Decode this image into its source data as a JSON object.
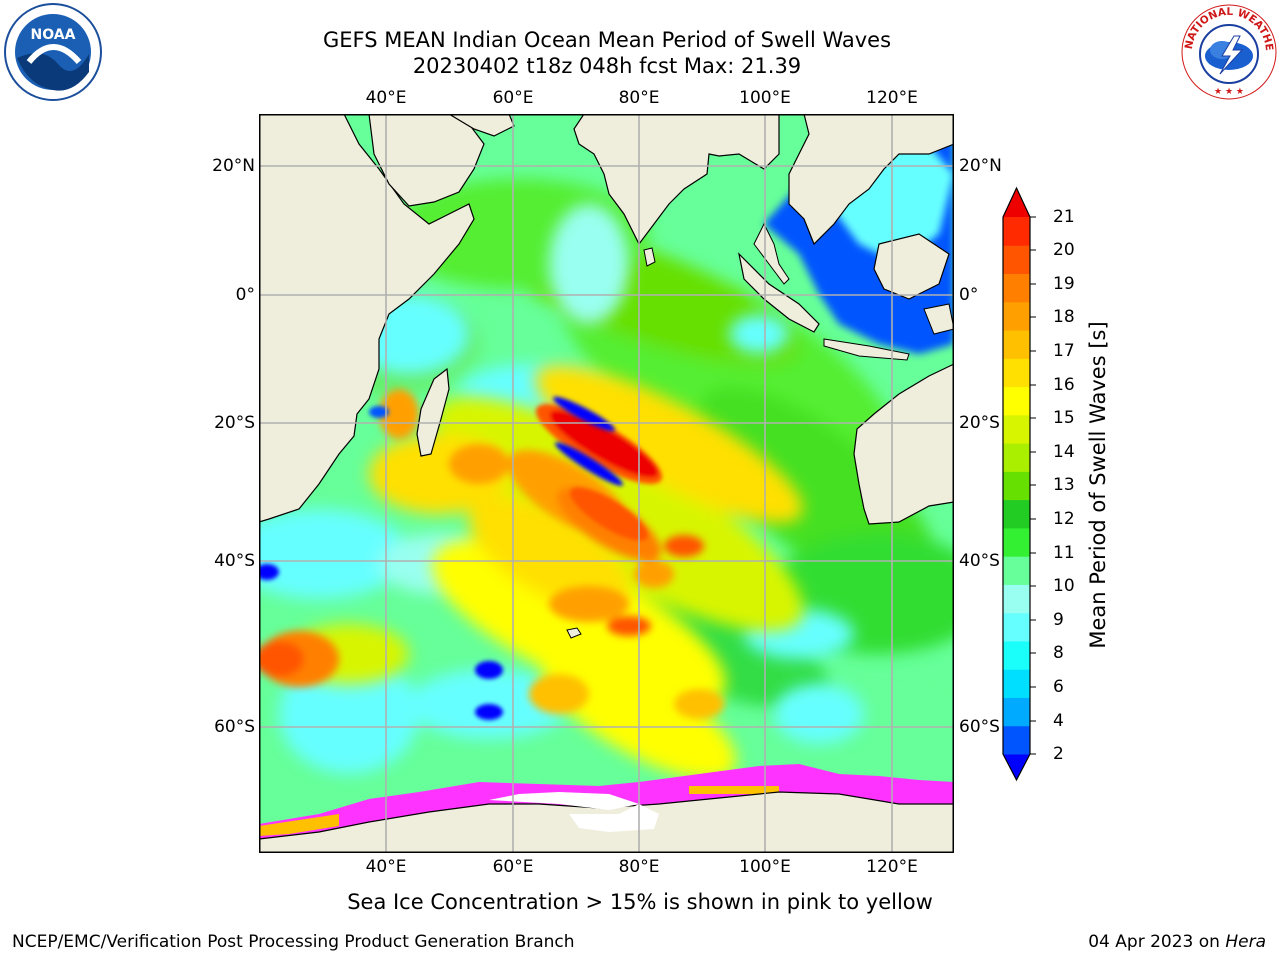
{
  "header": {
    "title_line1": "GEFS MEAN Indian Ocean Mean Period of Swell Waves",
    "title_line2": "20230402 t18z 048h fcst   Max: 21.39"
  },
  "map": {
    "longitude_labels": [
      "40°E",
      "60°E",
      "80°E",
      "100°E",
      "120°E"
    ],
    "latitude_labels": [
      "20°N",
      "0°",
      "20°S",
      "40°S",
      "60°S"
    ],
    "extent": {
      "lon_min": 20,
      "lon_max": 130,
      "lat_min": -76,
      "lat_max": 28
    },
    "colors": {
      "land": "#efeedc",
      "ice": "#ff33ff",
      "grid": "#b0b0b0"
    }
  },
  "colorbar": {
    "label": "Mean Period of Swell Waves [s]",
    "ticks": [
      "21",
      "20",
      "19",
      "18",
      "17",
      "16",
      "15",
      "14",
      "13",
      "12",
      "11",
      "10",
      "9",
      "8",
      "6",
      "4",
      "2"
    ],
    "colors": [
      "#0000ff",
      "#0055ff",
      "#00aaff",
      "#00dfff",
      "#1afffa",
      "#66ffff",
      "#99fff0",
      "#66ff99",
      "#33f033",
      "#22cc22",
      "#66e000",
      "#aaee00",
      "#d8f500",
      "#ffff00",
      "#ffe000",
      "#ffc000",
      "#ffa000",
      "#ff8000",
      "#ff5500",
      "#ff2a00",
      "#ee0000"
    ]
  },
  "note": "Sea Ice Concentration > 15% is shown in pink to yellow",
  "footer": {
    "left": "NCEP/EMC/Verification Post Processing Product Generation Branch",
    "date": "04 Apr 2023 on ",
    "machine": "Hera"
  },
  "logos": {
    "noaa_text": "NOAA",
    "nws_text": "NATIONAL WEATHER SERVICE"
  }
}
